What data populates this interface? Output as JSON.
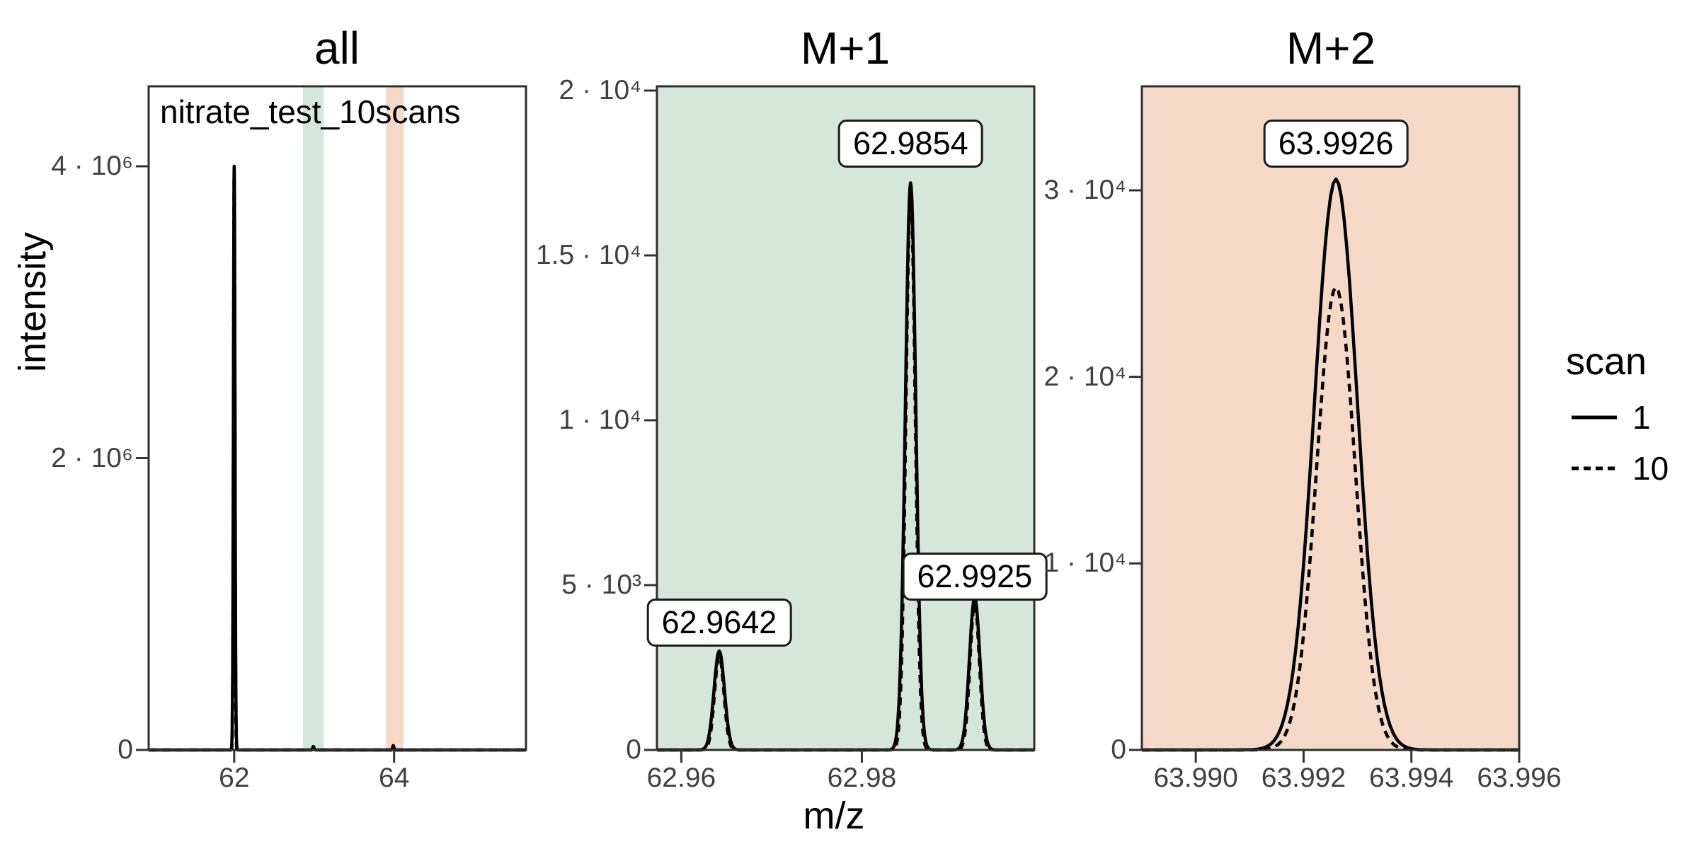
{
  "figure": {
    "xlabel": "m/z",
    "ylabel": "intensity",
    "legend": {
      "title": "scan",
      "items": [
        {
          "label": "1",
          "linetype": "solid"
        },
        {
          "label": "10",
          "linetype": "dashed"
        }
      ]
    }
  },
  "colors": {
    "m1_highlight": "#d5e7da",
    "m2_highlight": "#f5d9c8",
    "line": "#000000",
    "panel_border": "#2e2e2e",
    "tick": "#333333",
    "axis_text": "#404040",
    "label_box_bg": "#ffffff",
    "label_box_border": "#1a1a1a"
  },
  "chart_data": [
    {
      "type": "line",
      "title": "all",
      "annotation": "nitrate_test_10scans",
      "fill": "#ffffff",
      "xlim": [
        60.93,
        65.65
      ],
      "ylim": [
        0,
        4548000
      ],
      "xticks": [
        {
          "v": 62,
          "label": "62"
        },
        {
          "v": 64,
          "label": "64"
        }
      ],
      "yticks": [
        {
          "v": 0,
          "label": "0"
        },
        {
          "v": 2000000,
          "label": "2 · 10⁶"
        },
        {
          "v": 4000000,
          "label": "4 · 10⁶"
        }
      ],
      "bands": [
        {
          "from": 62.86,
          "to": 63.12,
          "color": "#d5e7da",
          "name": "M+1 window"
        },
        {
          "from": 63.9,
          "to": 64.12,
          "color": "#f5d9c8",
          "name": "M+2 window"
        }
      ],
      "series": [
        {
          "name": "1",
          "linetype": "solid",
          "peaks": [
            {
              "mz": 62.0,
              "intensity": 4000000,
              "sigma": 0.01
            },
            {
              "mz": 62.99,
              "intensity": 24000,
              "sigma": 0.008
            },
            {
              "mz": 63.99,
              "intensity": 30000,
              "sigma": 0.008
            }
          ]
        },
        {
          "name": "10",
          "linetype": "dashed",
          "peaks": [
            {
              "mz": 62.0,
              "intensity": 3980000,
              "sigma": 0.009
            },
            {
              "mz": 62.99,
              "intensity": 23000,
              "sigma": 0.007
            },
            {
              "mz": 63.99,
              "intensity": 25000,
              "sigma": 0.007
            }
          ]
        }
      ],
      "peak_labels": []
    },
    {
      "type": "line",
      "title": "M+1",
      "fill": "#d5e7da",
      "xlim": [
        62.9573,
        62.9991
      ],
      "ylim": [
        0,
        20129
      ],
      "xticks": [
        {
          "v": 62.96,
          "label": "62.96"
        },
        {
          "v": 62.98,
          "label": "62.98"
        }
      ],
      "yticks": [
        {
          "v": 0,
          "label": "0"
        },
        {
          "v": 5000,
          "label": "5 · 10³"
        },
        {
          "v": 10000,
          "label": "1 · 10⁴"
        },
        {
          "v": 15000,
          "label": "1.5 · 10⁴"
        },
        {
          "v": 20000,
          "label": "2 · 10⁴"
        }
      ],
      "bands": [],
      "series": [
        {
          "name": "1",
          "linetype": "solid",
          "peaks": [
            {
              "mz": 62.9642,
              "intensity": 3000,
              "sigma": 0.00058
            },
            {
              "mz": 62.9854,
              "intensity": 17200,
              "sigma": 0.00058
            },
            {
              "mz": 62.9925,
              "intensity": 4620,
              "sigma": 0.00058
            }
          ]
        },
        {
          "name": "10",
          "linetype": "dashed",
          "peaks": [
            {
              "mz": 62.9642,
              "intensity": 2850,
              "sigma": 0.00052
            },
            {
              "mz": 62.9854,
              "intensity": 16900,
              "sigma": 0.00052
            },
            {
              "mz": 62.9925,
              "intensity": 4430,
              "sigma": 0.00052
            }
          ]
        }
      ],
      "peak_labels": [
        {
          "text": "62.9642",
          "mz": 62.9642,
          "y": 3863
        },
        {
          "text": "62.9854",
          "mz": 62.9854,
          "y": 18391
        },
        {
          "text": "62.9925",
          "mz": 62.9925,
          "y": 5258
        }
      ]
    },
    {
      "type": "line",
      "title": "M+2",
      "fill": "#f5d9c8",
      "xlim": [
        63.989,
        63.996
      ],
      "ylim": [
        0,
        35575
      ],
      "xticks": [
        {
          "v": 63.99,
          "label": "63.990"
        },
        {
          "v": 63.992,
          "label": "63.992"
        },
        {
          "v": 63.994,
          "label": "63.994"
        },
        {
          "v": 63.996,
          "label": "63.996"
        }
      ],
      "yticks": [
        {
          "v": 0,
          "label": "0"
        },
        {
          "v": 10000,
          "label": "1 · 10⁴"
        },
        {
          "v": 20000,
          "label": "2 · 10⁴"
        },
        {
          "v": 30000,
          "label": "3 · 10⁴"
        }
      ],
      "bands": [],
      "series": [
        {
          "name": "1",
          "linetype": "solid",
          "peaks": [
            {
              "mz": 63.9926,
              "intensity": 30600,
              "sigma": 0.0004
            }
          ]
        },
        {
          "name": "10",
          "linetype": "dashed",
          "peaks": [
            {
              "mz": 63.9926,
              "intensity": 24800,
              "sigma": 0.00036
            }
          ]
        }
      ],
      "peak_labels": [
        {
          "text": "63.9926",
          "mz": 63.9926,
          "y": 32503
        }
      ]
    }
  ]
}
